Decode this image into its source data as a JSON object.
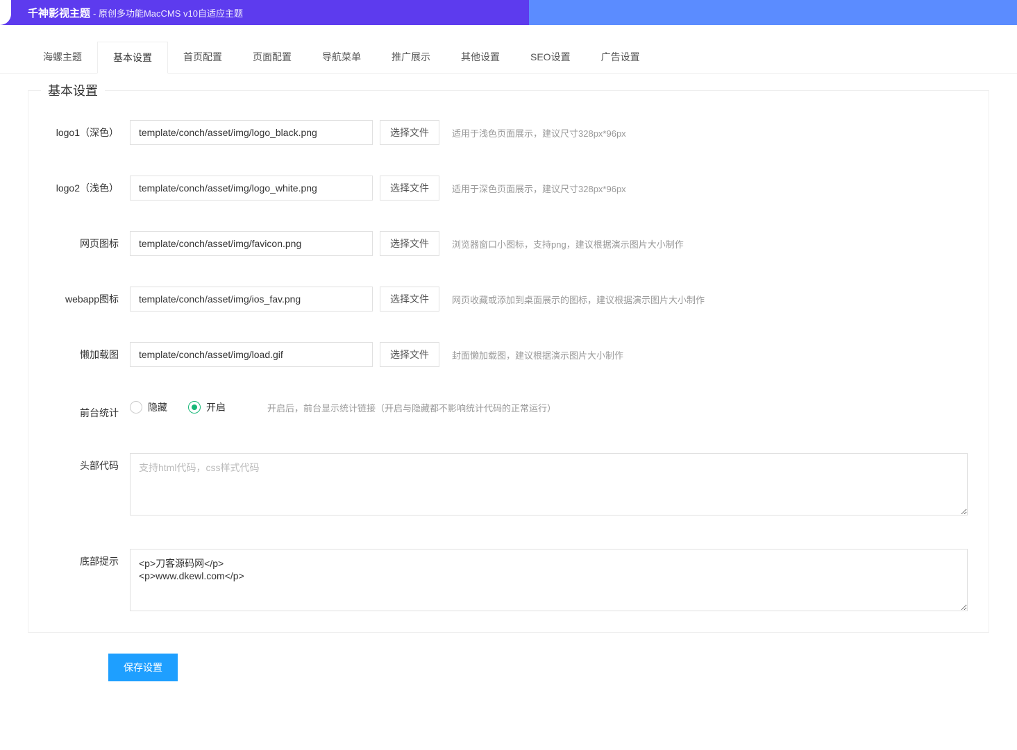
{
  "header": {
    "title": "千神影视主题",
    "subtitle": " - 原创多功能MacCMS v10自适应主题"
  },
  "tabs": [
    {
      "label": "海螺主题",
      "active": false
    },
    {
      "label": "基本设置",
      "active": true
    },
    {
      "label": "首页配置",
      "active": false
    },
    {
      "label": "页面配置",
      "active": false
    },
    {
      "label": "导航菜单",
      "active": false
    },
    {
      "label": "推广展示",
      "active": false
    },
    {
      "label": "其他设置",
      "active": false
    },
    {
      "label": "SEO设置",
      "active": false
    },
    {
      "label": "广告设置",
      "active": false
    }
  ],
  "panel": {
    "title": "基本设置",
    "fileRows": [
      {
        "label": "logo1（深色）",
        "value": "template/conch/asset/img/logo_black.png",
        "btn": "选择文件",
        "hint": "适用于浅色页面展示，建议尺寸328px*96px"
      },
      {
        "label": "logo2（浅色）",
        "value": "template/conch/asset/img/logo_white.png",
        "btn": "选择文件",
        "hint": "适用于深色页面展示，建议尺寸328px*96px"
      },
      {
        "label": "网页图标",
        "value": "template/conch/asset/img/favicon.png",
        "btn": "选择文件",
        "hint": "浏览器窗口小图标，支持png，建议根据演示图片大小制作"
      },
      {
        "label": "webapp图标",
        "value": "template/conch/asset/img/ios_fav.png",
        "btn": "选择文件",
        "hint": "网页收藏或添加到桌面展示的图标，建议根据演示图片大小制作"
      },
      {
        "label": "懒加载图",
        "value": "template/conch/asset/img/load.gif",
        "btn": "选择文件",
        "hint": "封面懒加载图，建议根据演示图片大小制作"
      }
    ],
    "radioRow": {
      "label": "前台统计",
      "options": [
        {
          "text": "隐藏",
          "checked": false
        },
        {
          "text": "开启",
          "checked": true
        }
      ],
      "hint": "开启后，前台显示统计链接（开启与隐藏都不影响统计代码的正常运行）"
    },
    "textareaRows": [
      {
        "label": "头部代码",
        "placeholder": "支持html代码，css样式代码",
        "value": ""
      },
      {
        "label": "底部提示",
        "placeholder": "",
        "value": "<p>刀客源码网</p>\n<p>www.dkewl.com</p>"
      }
    ],
    "saveBtn": "保存设置"
  }
}
